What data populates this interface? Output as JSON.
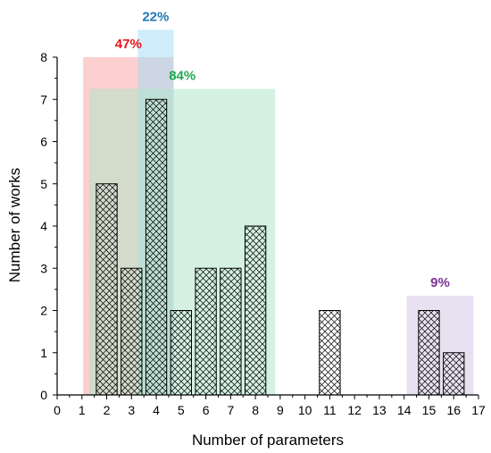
{
  "chart_data": {
    "type": "bar",
    "title": "",
    "xlabel": "Number of parameters",
    "ylabel": "Number of works",
    "xlim": [
      0,
      17
    ],
    "ylim": [
      0,
      8
    ],
    "x_ticks": [
      0,
      1,
      2,
      3,
      4,
      5,
      6,
      7,
      8,
      9,
      10,
      11,
      12,
      13,
      14,
      15,
      16,
      17
    ],
    "y_ticks": [
      0,
      1,
      2,
      3,
      4,
      5,
      6,
      7,
      8
    ],
    "grid": false,
    "legend": "none",
    "bar_pattern": "crosshatch",
    "bars": [
      {
        "x": 2,
        "value": 5
      },
      {
        "x": 3,
        "value": 3
      },
      {
        "x": 4,
        "value": 7
      },
      {
        "x": 5,
        "value": 2
      },
      {
        "x": 6,
        "value": 3
      },
      {
        "x": 7,
        "value": 3
      },
      {
        "x": 8,
        "value": 4
      },
      {
        "x": 11,
        "value": 2
      },
      {
        "x": 15,
        "value": 2
      },
      {
        "x": 16,
        "value": 1
      }
    ],
    "regions": [
      {
        "label": "47%",
        "x_range": [
          1.05,
          4.7
        ],
        "y_top": 8.0,
        "fill": "#f7a8a8",
        "text_color": "#e8131b"
      },
      {
        "label": "22%",
        "x_range": [
          3.25,
          4.7
        ],
        "y_top": 8.65,
        "fill": "#a8def5",
        "text_color": "#1f77b4"
      },
      {
        "label": "84%",
        "x_range": [
          1.3,
          8.8
        ],
        "y_top": 7.25,
        "fill": "#b3e6c8",
        "text_color": "#1fa84f"
      },
      {
        "label": "9%",
        "x_range": [
          14.1,
          16.8
        ],
        "y_top": 2.35,
        "fill": "#d6c8e8",
        "text_color": "#7b3294"
      }
    ]
  }
}
